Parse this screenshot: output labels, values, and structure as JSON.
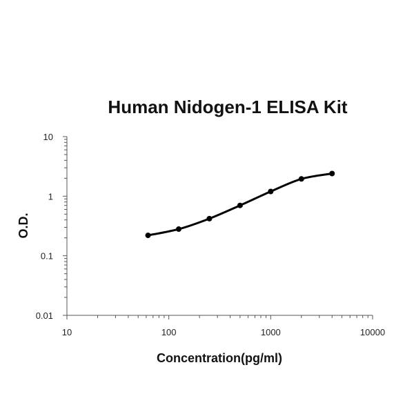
{
  "chart_data": {
    "type": "line",
    "title": "Human Nidogen-1 ELISA Kit",
    "xlabel": "Concentration(pg/ml)",
    "ylabel": "O.D.",
    "xscale": "log",
    "yscale": "log",
    "xlim": [
      10,
      10000
    ],
    "ylim": [
      0.01,
      10
    ],
    "x_ticks": [
      "10",
      "100",
      "1000",
      "10000"
    ],
    "y_ticks": [
      "0.01",
      "0.1",
      "1",
      "10"
    ],
    "grid": false,
    "legend": "none",
    "line_color": "#000000",
    "series": [
      {
        "x": [
          62.5,
          125,
          250,
          500,
          1000,
          2000,
          4000
        ],
        "y": [
          0.22,
          0.28,
          0.42,
          0.7,
          1.2,
          1.95,
          2.4
        ]
      }
    ]
  }
}
